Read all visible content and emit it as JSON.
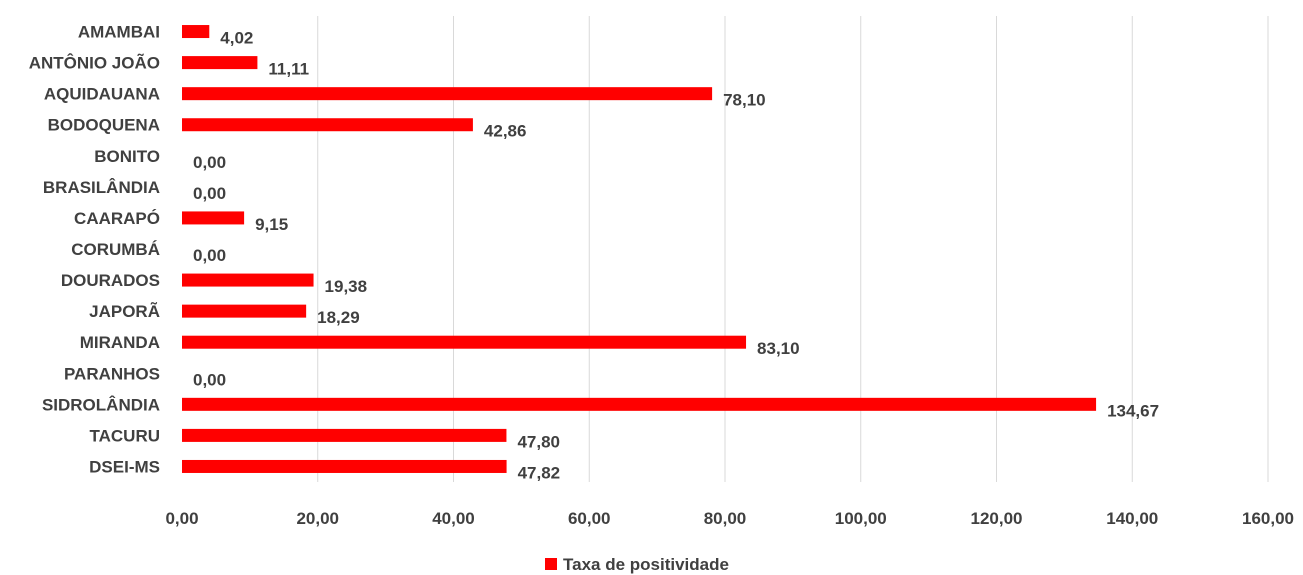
{
  "chart_data": {
    "type": "bar",
    "orientation": "horizontal",
    "categories": [
      "AMAMBAI",
      "ANTÔNIO JOÃO",
      "AQUIDAUANA",
      "BODOQUENA",
      "BONITO",
      "BRASILÂNDIA",
      "CAARAPÓ",
      "CORUMBÁ",
      "DOURADOS",
      "JAPORÃ",
      "MIRANDA",
      "PARANHOS",
      "SIDROLÂNDIA",
      "TACURU",
      "DSEI-MS"
    ],
    "series": [
      {
        "name": "Taxa de positividade",
        "color": "#ff0000",
        "values": [
          4.02,
          11.11,
          78.1,
          42.86,
          0.0,
          0.0,
          9.15,
          0.0,
          19.38,
          18.29,
          83.1,
          0.0,
          134.67,
          47.8,
          47.82
        ],
        "labels": [
          "4,02",
          "11,11",
          "78,10",
          "42,86",
          "0,00",
          "0,00",
          "9,15",
          "0,00",
          "19,38",
          "18,29",
          "83,10",
          "0,00",
          "134,67",
          "47,80",
          "47,82"
        ]
      }
    ],
    "xlim": [
      0,
      160
    ],
    "xticks": [
      0,
      20,
      40,
      60,
      80,
      100,
      120,
      140,
      160
    ],
    "xtick_labels": [
      "0,00",
      "20,00",
      "40,00",
      "60,00",
      "80,00",
      "100,00",
      "120,00",
      "140,00",
      "160,00"
    ],
    "grid": true,
    "legend_position": "bottom",
    "title": "",
    "xlabel": "",
    "ylabel": ""
  }
}
